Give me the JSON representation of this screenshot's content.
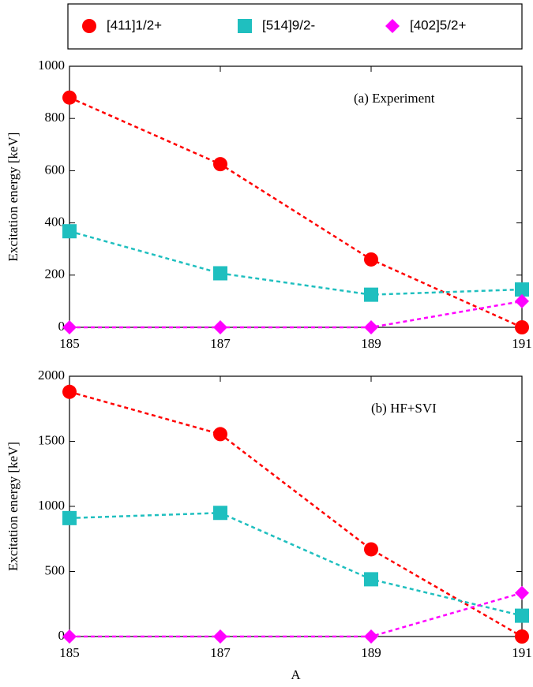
{
  "chart_data": [
    {
      "type": "line",
      "annotation": "(a) Experiment",
      "y_label": "Excitation energy [keV]",
      "x": [
        185,
        187,
        189,
        191
      ],
      "xlim": [
        185,
        191
      ],
      "xticks": [
        185,
        187,
        189,
        191
      ],
      "ylim": [
        0,
        1000
      ],
      "yticks": [
        0,
        200,
        400,
        600,
        800,
        1000
      ],
      "series": [
        {
          "name": "[411]1/2+",
          "color": "#ff0000",
          "marker": "circle",
          "values": [
            880,
            625,
            260,
            0
          ]
        },
        {
          "name": "[514]9/2-",
          "color": "#1fbfbf",
          "marker": "square",
          "values": [
            368,
            207,
            125,
            145
          ]
        },
        {
          "name": "[402]5/2+",
          "color": "#ff00ff",
          "marker": "diamond",
          "values": [
            0,
            0,
            0,
            100
          ]
        }
      ]
    },
    {
      "type": "line",
      "annotation": "(b) HF+SVI",
      "y_label": "Excitation energy [keV]",
      "x_label": "A",
      "x": [
        185,
        187,
        189,
        191
      ],
      "xlim": [
        185,
        191
      ],
      "xticks": [
        185,
        187,
        189,
        191
      ],
      "ylim": [
        0,
        2000
      ],
      "yticks": [
        0,
        500,
        1000,
        1500,
        2000
      ],
      "series": [
        {
          "color": "#ff0000",
          "marker": "circle",
          "values": [
            1880,
            1555,
            670,
            0
          ]
        },
        {
          "color": "#1fbfbf",
          "marker": "square",
          "values": [
            910,
            950,
            440,
            160
          ]
        },
        {
          "color": "#ff00ff",
          "marker": "diamond",
          "values": [
            0,
            0,
            0,
            335
          ]
        }
      ]
    }
  ]
}
